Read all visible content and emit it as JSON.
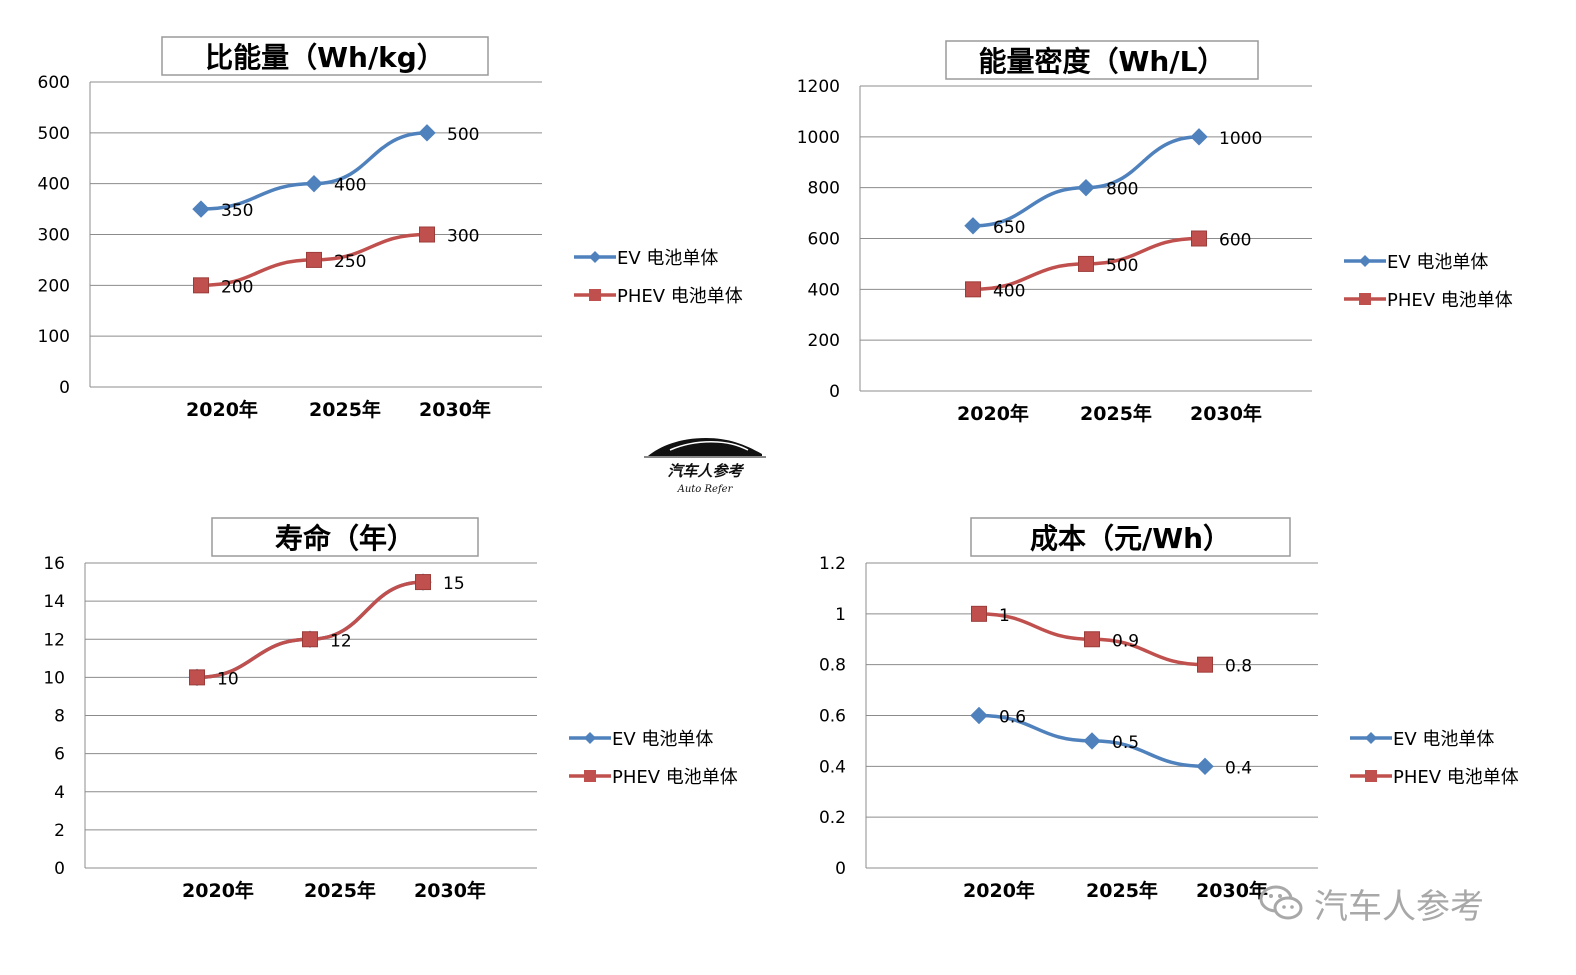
{
  "chart_data": [
    {
      "type": "line",
      "title": "比能量（Wh/kg）",
      "categories": [
        "2020年",
        "2025年",
        "2030年"
      ],
      "ylim": [
        0,
        600
      ],
      "yticks": [
        "0",
        "100",
        "200",
        "300",
        "400",
        "500",
        "600"
      ],
      "grid": true,
      "legend_placement": "right",
      "series": [
        {
          "name": "EV 电池单体",
          "values": [
            350,
            400,
            500
          ],
          "labels": [
            "350",
            "400",
            "500"
          ],
          "color": "#4F81BD",
          "marker": "diamond"
        },
        {
          "name": "PHEV 电池单体",
          "values": [
            200,
            250,
            300
          ],
          "labels": [
            "200",
            "250",
            "300"
          ],
          "color": "#C0504D",
          "marker": "square"
        }
      ]
    },
    {
      "type": "line",
      "title": "能量密度（Wh/L）",
      "categories": [
        "2020年",
        "2025年",
        "2030年"
      ],
      "ylim": [
        0,
        1200
      ],
      "yticks": [
        "0",
        "200",
        "400",
        "600",
        "800",
        "1000",
        "1200"
      ],
      "grid": true,
      "legend_placement": "right",
      "series": [
        {
          "name": "EV 电池单体",
          "values": [
            650,
            800,
            1000
          ],
          "labels": [
            "650",
            "800",
            "1000"
          ],
          "color": "#4F81BD",
          "marker": "diamond"
        },
        {
          "name": "PHEV 电池单体",
          "values": [
            400,
            500,
            600
          ],
          "labels": [
            "400",
            "500",
            "600"
          ],
          "color": "#C0504D",
          "marker": "square"
        }
      ]
    },
    {
      "type": "line",
      "title": "寿命（年）",
      "categories": [
        "2020年",
        "2025年",
        "2030年"
      ],
      "ylim": [
        0,
        16
      ],
      "yticks": [
        "0",
        "2",
        "4",
        "6",
        "8",
        "10",
        "12",
        "14",
        "16"
      ],
      "grid": true,
      "legend_placement": "right",
      "series": [
        {
          "name": "EV 电池单体",
          "values": [
            10,
            12,
            15
          ],
          "labels": [],
          "color": "#4F81BD",
          "marker": "diamond"
        },
        {
          "name": "PHEV 电池单体",
          "values": [
            10,
            12,
            15
          ],
          "labels": [
            "10",
            "12",
            "15"
          ],
          "color": "#C0504D",
          "marker": "square"
        }
      ]
    },
    {
      "type": "line",
      "title": "成本（元/Wh）",
      "categories": [
        "2020年",
        "2025年",
        "2030年"
      ],
      "ylim": [
        0,
        1.2
      ],
      "yticks": [
        "0",
        "0.2",
        "0.4",
        "0.6",
        "0.8",
        "1",
        "1.2"
      ],
      "grid": true,
      "legend_placement": "right",
      "series": [
        {
          "name": "EV 电池单体",
          "values": [
            0.6,
            0.5,
            0.4
          ],
          "labels": [
            "0.6",
            "0.5",
            "0.4"
          ],
          "color": "#4F81BD",
          "marker": "diamond"
        },
        {
          "name": "PHEV 电池单体",
          "values": [
            1,
            0.9,
            0.8
          ],
          "labels": [
            "1",
            "0.9",
            "0.8"
          ],
          "color": "#C0504D",
          "marker": "square"
        }
      ]
    }
  ],
  "logo": {
    "cn": "汽车人参考",
    "en": "Auto Refer"
  },
  "watermark": {
    "text": "汽车人参考",
    "icon": "wechat-icon"
  }
}
